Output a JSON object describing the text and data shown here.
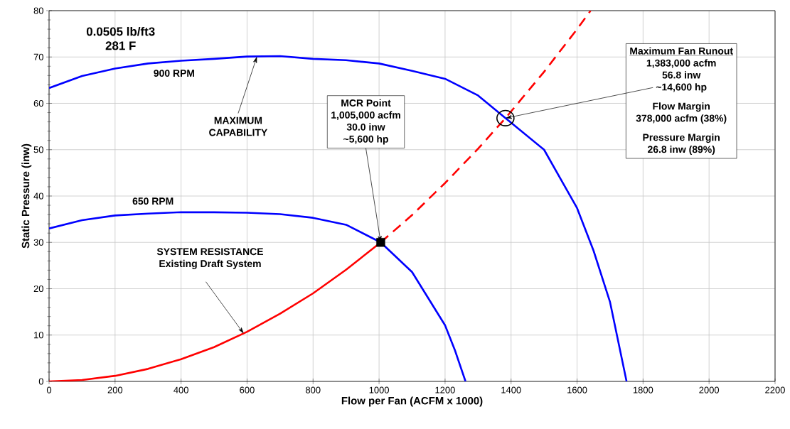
{
  "chart_data": {
    "type": "line",
    "xlabel": "Flow per Fan (ACFM x 1000)",
    "ylabel": "Static Pressure (inw)",
    "xlim": [
      0,
      2200
    ],
    "ylim": [
      0,
      80
    ],
    "xticks": [
      0,
      200,
      400,
      600,
      800,
      1000,
      1200,
      1400,
      1600,
      1800,
      2000,
      2200
    ],
    "yticks": [
      0,
      10,
      20,
      30,
      40,
      50,
      60,
      70,
      80
    ],
    "grid": true,
    "series": [
      {
        "name": "900 RPM",
        "type": "line",
        "color": "#0000ff",
        "line_style": "solid",
        "x": [
          0,
          100,
          200,
          300,
          400,
          500,
          600,
          700,
          800,
          900,
          1000,
          1100,
          1200,
          1300,
          1383,
          1500,
          1600,
          1650,
          1700,
          1750
        ],
        "values": [
          63.3,
          65.9,
          67.5,
          68.6,
          69.2,
          69.6,
          70.1,
          70.2,
          69.6,
          69.3,
          68.6,
          67.0,
          65.3,
          61.7,
          56.8,
          50.0,
          37.4,
          28.2,
          17.1,
          0
        ]
      },
      {
        "name": "650 RPM",
        "type": "line",
        "color": "#0000ff",
        "line_style": "solid",
        "x": [
          0,
          100,
          200,
          300,
          400,
          500,
          600,
          700,
          800,
          900,
          1005,
          1100,
          1200,
          1230,
          1262
        ],
        "values": [
          33.0,
          34.8,
          35.8,
          36.2,
          36.5,
          36.5,
          36.4,
          36.1,
          35.3,
          33.8,
          30.0,
          23.6,
          12.1,
          6.7,
          0
        ]
      },
      {
        "type": "line",
        "color": "#ff0000",
        "line_style": "solid",
        "x": [
          0,
          100,
          200,
          300,
          400,
          500,
          600,
          700,
          800,
          900,
          1005
        ],
        "values": [
          0,
          0.3,
          1.2,
          2.7,
          4.8,
          7.4,
          10.7,
          14.6,
          19.0,
          24.1,
          30.0
        ]
      },
      {
        "type": "line",
        "color": "#ff0000",
        "line_style": "dashed",
        "x": [
          1005,
          1100,
          1200,
          1300,
          1383,
          1500,
          1600,
          1641
        ],
        "values": [
          30.0,
          35.9,
          42.8,
          50.2,
          56.8,
          66.8,
          76.0,
          80.0
        ]
      },
      {
        "type": "scatter",
        "marker": "square",
        "color": "#000000",
        "x": [
          1005
        ],
        "values": [
          30.0
        ]
      },
      {
        "type": "scatter",
        "marker": "circle",
        "color": "#000000",
        "x": [
          1383
        ],
        "values": [
          56.8
        ]
      }
    ],
    "annotations": [
      "0.0505 lb/ft3",
      "281 F",
      {
        "text": "MAXIMUM CAPABILITY",
        "x": 630,
        "y": 70.1
      },
      "SYSTEM RESISTANCE",
      {
        "text": "Existing Draft System",
        "x": 590,
        "y": 10.3
      },
      "MCR Point",
      "1,005,000 acfm",
      "30.0 inw",
      {
        "text": "~5,600 hp",
        "x": 1005,
        "y": 30.0
      },
      "Maximum Fan Runout",
      "1,383,000 acfm",
      "56.8 inw",
      {
        "text": "~14,600 hp",
        "x": 1383,
        "y": 56.8
      },
      "Flow Margin",
      "378,000 acfm (38%)",
      "Pressure Margin",
      "26.8 inw (89%)"
    ]
  }
}
